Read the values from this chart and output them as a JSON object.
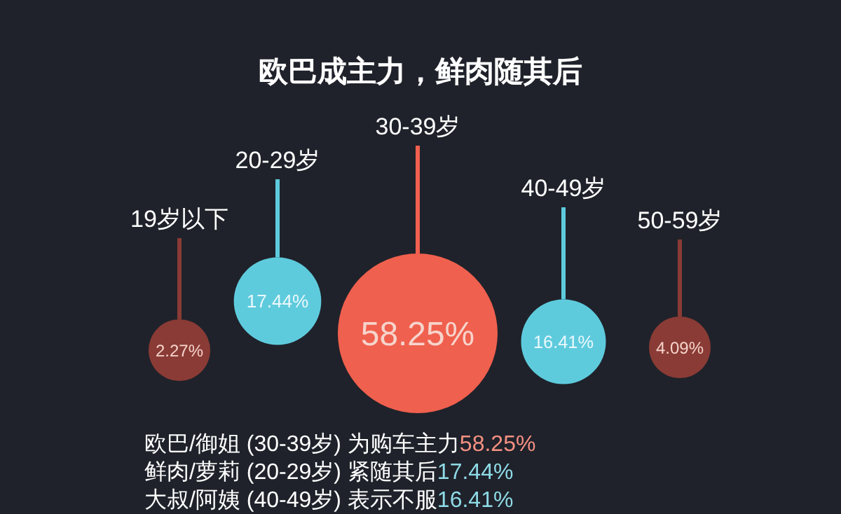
{
  "chart_data": {
    "type": "other",
    "title": "欧巴成主力，鲜肉随其后",
    "categories": [
      "19岁以下",
      "20-29岁",
      "30-39岁",
      "40-49岁",
      "50-59岁"
    ],
    "values": [
      2.27,
      17.44,
      58.25,
      16.41,
      4.09
    ],
    "value_labels": [
      "2.27%",
      "17.44%",
      "58.25%",
      "16.41%",
      "4.09%"
    ],
    "colors": [
      "#8a3b35",
      "#5ecbdd",
      "#f0604e",
      "#5ecbdd",
      "#8a3b35"
    ],
    "annotations": [
      "欧巴/御姐 (30-39岁) 为购车主力58.25%",
      "鲜肉/萝莉 (20-29岁) 紧随其后17.44%",
      "大叔/阿姨 (40-49岁) 表示不服16.41%"
    ]
  }
}
